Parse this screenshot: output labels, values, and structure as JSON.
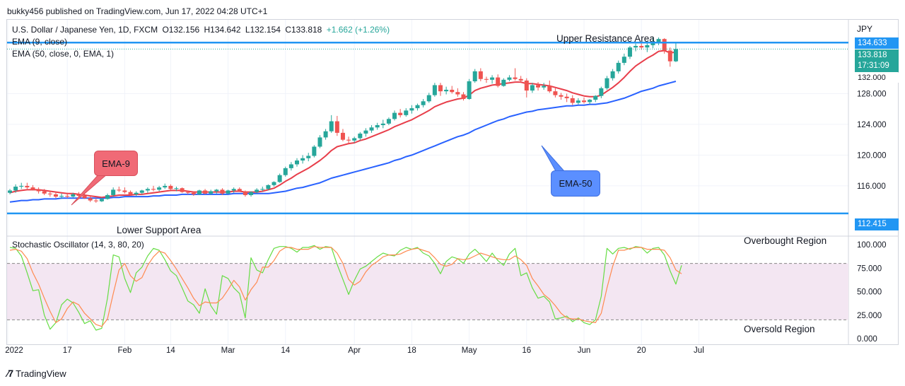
{
  "header": {
    "publisher_line": "bukky456 published on TradingView.com, Jun 17, 2022 04:28 UTC+1"
  },
  "legend": {
    "symbol": "U.S. Dollar / Japanese Yen, 1D, FXCM",
    "open": "O132.156",
    "high": "H134.642",
    "low": "L132.154",
    "close": "C133.818",
    "change": "+1.662 (+1.26%)",
    "ema9": "EMA (9, close)",
    "ema50": "EMA (50, close, 0, EMA, 1)",
    "stoch": "Stochastic Oscillator (14, 3, 80, 20)"
  },
  "annotations": {
    "upper": "Upper Resistance Area",
    "lower": "Lower Support Area",
    "ema9_callout": "EMA-9",
    "ema50_callout": "EMA-50",
    "overbought": "Overbought Region",
    "oversold": "Oversold Region"
  },
  "price_scale": {
    "currency": "JPY",
    "resistance_label": "134.633",
    "price_label": "133.818",
    "countdown": "17:31:09",
    "support_label": "112.415",
    "hidden_tick": "132.000"
  },
  "footer": {
    "brand": "TradingView"
  },
  "colors": {
    "up": "#26a69a",
    "down": "#ef5350",
    "ema9": "#e83e4a",
    "ema50": "#2962ff",
    "level": "#2196f3",
    "stoch_k": "#66dd44",
    "stoch_d": "#ff8a50",
    "band": "#f3e6f2"
  },
  "chart_data": {
    "type": "candlestick",
    "title": "U.S. Dollar / Japanese Yen, 1D, FXCM",
    "ylim": [
      110.2,
      137.6
    ],
    "y_ticks": [
      "116.000",
      "120.000",
      "124.000",
      "128.000"
    ],
    "y_tick_values": [
      116,
      120,
      124,
      128
    ],
    "x_ticks": [
      "2022",
      "17",
      "Feb",
      "14",
      "Mar",
      "14",
      "Apr",
      "18",
      "May",
      "16",
      "Jun",
      "20",
      "Jul"
    ],
    "x_tick_index": [
      0,
      10,
      20,
      28,
      38,
      48,
      60,
      70,
      80,
      90,
      100,
      110,
      120
    ],
    "levels": {
      "resistance": 134.633,
      "support": 112.415
    },
    "candles": [
      [
        115.1,
        115.6,
        114.9,
        115.4
      ],
      [
        115.4,
        116.2,
        115.1,
        115.9
      ],
      [
        115.9,
        116.4,
        115.6,
        116.0
      ],
      [
        116.0,
        116.4,
        115.6,
        115.8
      ],
      [
        115.8,
        116.1,
        115.4,
        115.5
      ],
      [
        115.5,
        115.8,
        115.0,
        115.3
      ],
      [
        115.3,
        115.6,
        114.8,
        115.0
      ],
      [
        115.0,
        115.4,
        114.6,
        114.9
      ],
      [
        114.9,
        115.2,
        114.4,
        114.6
      ],
      [
        114.6,
        115.0,
        114.3,
        114.7
      ],
      [
        114.7,
        115.1,
        114.4,
        114.6
      ],
      [
        114.6,
        115.1,
        114.5,
        114.9
      ],
      [
        114.9,
        115.2,
        114.6,
        114.7
      ],
      [
        114.7,
        115.0,
        114.3,
        114.4
      ],
      [
        114.4,
        114.7,
        113.9,
        114.1
      ],
      [
        114.1,
        114.4,
        113.8,
        114.0
      ],
      [
        114.0,
        114.5,
        113.9,
        114.3
      ],
      [
        114.3,
        115.0,
        114.2,
        114.8
      ],
      [
        114.8,
        115.8,
        114.6,
        115.5
      ],
      [
        115.5,
        115.9,
        115.2,
        115.4
      ],
      [
        115.4,
        115.8,
        115.0,
        115.2
      ],
      [
        115.2,
        115.4,
        114.7,
        114.9
      ],
      [
        114.9,
        115.3,
        114.7,
        115.1
      ],
      [
        115.1,
        115.5,
        114.9,
        115.4
      ],
      [
        115.4,
        115.8,
        115.1,
        115.6
      ],
      [
        115.6,
        116.0,
        115.3,
        115.5
      ],
      [
        115.5,
        116.0,
        115.3,
        115.8
      ],
      [
        115.8,
        116.3,
        115.6,
        116.0
      ],
      [
        116.0,
        116.2,
        115.5,
        115.6
      ],
      [
        115.6,
        115.9,
        115.3,
        115.7
      ],
      [
        115.7,
        115.8,
        115.1,
        115.2
      ],
      [
        115.2,
        115.4,
        114.9,
        115.1
      ],
      [
        115.1,
        115.3,
        114.7,
        114.9
      ],
      [
        114.9,
        115.5,
        114.8,
        115.4
      ],
      [
        115.4,
        115.6,
        114.9,
        115.0
      ],
      [
        115.0,
        115.5,
        114.8,
        115.3
      ],
      [
        115.3,
        115.6,
        115.0,
        115.5
      ],
      [
        115.5,
        115.7,
        114.8,
        115.0
      ],
      [
        115.0,
        115.5,
        114.9,
        115.4
      ],
      [
        115.4,
        115.8,
        115.1,
        115.6
      ],
      [
        115.6,
        115.8,
        115.2,
        115.3
      ],
      [
        115.3,
        115.4,
        114.6,
        114.8
      ],
      [
        114.8,
        115.3,
        114.6,
        115.2
      ],
      [
        115.2,
        115.7,
        115.0,
        115.5
      ],
      [
        115.5,
        115.9,
        115.3,
        115.6
      ],
      [
        115.6,
        116.2,
        115.4,
        116.1
      ],
      [
        116.1,
        116.6,
        115.9,
        116.5
      ],
      [
        116.5,
        117.6,
        116.4,
        117.4
      ],
      [
        117.4,
        118.5,
        117.2,
        118.3
      ],
      [
        118.3,
        119.1,
        118.0,
        118.8
      ],
      [
        118.8,
        119.6,
        118.5,
        119.3
      ],
      [
        119.3,
        120.0,
        118.9,
        119.6
      ],
      [
        119.6,
        120.3,
        119.2,
        119.9
      ],
      [
        119.9,
        121.3,
        119.7,
        121.1
      ],
      [
        121.1,
        122.6,
        120.9,
        122.3
      ],
      [
        122.3,
        123.4,
        122.0,
        123.1
      ],
      [
        123.1,
        125.2,
        122.9,
        124.4
      ],
      [
        124.4,
        125.1,
        122.5,
        122.9
      ],
      [
        122.9,
        123.4,
        121.8,
        122.0
      ],
      [
        122.0,
        122.4,
        121.4,
        121.9
      ],
      [
        121.9,
        122.4,
        121.6,
        122.2
      ],
      [
        122.2,
        123.0,
        121.9,
        122.8
      ],
      [
        122.8,
        123.5,
        122.4,
        123.2
      ],
      [
        123.2,
        123.9,
        122.9,
        123.6
      ],
      [
        123.6,
        124.2,
        123.3,
        123.9
      ],
      [
        123.9,
        124.6,
        123.5,
        124.1
      ],
      [
        124.1,
        124.9,
        123.9,
        124.7
      ],
      [
        124.7,
        125.8,
        124.5,
        125.5
      ],
      [
        125.5,
        126.0,
        124.9,
        125.2
      ],
      [
        125.2,
        126.1,
        125.0,
        125.8
      ],
      [
        125.8,
        126.5,
        125.4,
        126.1
      ],
      [
        126.1,
        126.7,
        125.8,
        126.5
      ],
      [
        126.5,
        127.3,
        126.2,
        127.0
      ],
      [
        127.0,
        128.1,
        126.8,
        127.8
      ],
      [
        127.8,
        129.4,
        127.6,
        129.1
      ],
      [
        129.1,
        129.4,
        127.7,
        128.3
      ],
      [
        128.3,
        128.9,
        127.9,
        128.5
      ],
      [
        128.5,
        129.0,
        128.0,
        128.2
      ],
      [
        128.2,
        128.7,
        127.6,
        127.9
      ],
      [
        127.9,
        128.2,
        127.1,
        127.3
      ],
      [
        127.3,
        129.9,
        127.2,
        129.6
      ],
      [
        129.6,
        131.2,
        129.4,
        130.9
      ],
      [
        130.9,
        131.3,
        129.6,
        129.9
      ],
      [
        129.9,
        130.2,
        129.4,
        129.8
      ],
      [
        129.8,
        130.4,
        129.3,
        130.1
      ],
      [
        130.1,
        130.5,
        128.8,
        129.0
      ],
      [
        129.0,
        130.0,
        128.9,
        129.8
      ],
      [
        129.8,
        130.4,
        129.6,
        130.1
      ],
      [
        130.1,
        131.3,
        129.7,
        129.9
      ],
      [
        129.9,
        130.3,
        129.4,
        129.7
      ],
      [
        129.7,
        130.0,
        127.5,
        128.4
      ],
      [
        128.4,
        129.4,
        128.1,
        129.1
      ],
      [
        129.1,
        129.5,
        128.4,
        128.8
      ],
      [
        128.8,
        129.4,
        128.5,
        129.0
      ],
      [
        129.0,
        129.7,
        128.1,
        128.3
      ],
      [
        128.3,
        128.7,
        127.5,
        127.8
      ],
      [
        127.8,
        128.1,
        127.2,
        127.6
      ],
      [
        127.6,
        128.0,
        126.9,
        127.4
      ],
      [
        127.4,
        127.8,
        126.5,
        126.8
      ],
      [
        126.8,
        127.4,
        126.6,
        127.1
      ],
      [
        127.1,
        127.5,
        126.7,
        126.9
      ],
      [
        126.9,
        127.3,
        126.6,
        127.2
      ],
      [
        127.2,
        127.8,
        126.9,
        127.7
      ],
      [
        127.7,
        128.9,
        127.4,
        128.7
      ],
      [
        128.7,
        130.3,
        128.5,
        130.0
      ],
      [
        130.0,
        131.2,
        129.7,
        130.9
      ],
      [
        130.9,
        132.3,
        130.6,
        132.0
      ],
      [
        132.0,
        133.2,
        131.7,
        132.8
      ],
      [
        132.8,
        134.2,
        132.5,
        134.0
      ],
      [
        134.0,
        134.5,
        133.5,
        134.2
      ],
      [
        134.2,
        134.6,
        133.7,
        134.0
      ],
      [
        134.0,
        134.7,
        133.4,
        134.3
      ],
      [
        134.3,
        135.4,
        133.9,
        134.6
      ],
      [
        134.6,
        135.3,
        134.3,
        135.1
      ],
      [
        135.1,
        135.2,
        133.2,
        133.6
      ],
      [
        133.6,
        134.0,
        131.5,
        132.2
      ],
      [
        132.2,
        134.6,
        132.1,
        133.8
      ]
    ],
    "ema9": [
      115.1,
      115.3,
      115.4,
      115.5,
      115.5,
      115.5,
      115.4,
      115.3,
      115.2,
      115.1,
      115.0,
      115.0,
      114.9,
      114.8,
      114.7,
      114.6,
      114.5,
      114.6,
      114.7,
      114.8,
      114.8,
      114.8,
      114.9,
      114.9,
      115.0,
      115.1,
      115.2,
      115.3,
      115.4,
      115.4,
      115.4,
      115.3,
      115.2,
      115.2,
      115.2,
      115.2,
      115.2,
      115.2,
      115.2,
      115.3,
      115.3,
      115.2,
      115.2,
      115.2,
      115.3,
      115.5,
      115.7,
      116.1,
      116.6,
      117.0,
      117.5,
      117.9,
      118.3,
      118.8,
      119.3,
      119.9,
      120.6,
      121.1,
      121.3,
      121.5,
      121.6,
      121.9,
      122.1,
      122.4,
      122.7,
      123.0,
      123.3,
      123.7,
      124.0,
      124.3,
      124.6,
      125.0,
      125.4,
      125.8,
      126.3,
      126.6,
      126.9,
      127.1,
      127.3,
      127.4,
      127.8,
      128.4,
      128.7,
      128.9,
      129.1,
      129.2,
      129.3,
      129.4,
      129.5,
      129.5,
      129.3,
      129.3,
      129.2,
      129.1,
      129.0,
      128.8,
      128.6,
      128.4,
      128.1,
      127.9,
      127.7,
      127.6,
      127.6,
      127.8,
      128.3,
      128.8,
      129.4,
      130.1,
      130.9,
      131.6,
      132.1,
      132.6,
      133.0,
      133.5,
      133.6,
      133.3,
      133.4
    ],
    "ema50": [
      113.9,
      114.0,
      114.1,
      114.1,
      114.2,
      114.2,
      114.3,
      114.3,
      114.3,
      114.4,
      114.4,
      114.4,
      114.4,
      114.4,
      114.4,
      114.4,
      114.4,
      114.4,
      114.5,
      114.5,
      114.6,
      114.6,
      114.6,
      114.6,
      114.6,
      114.7,
      114.7,
      114.8,
      114.8,
      114.8,
      114.9,
      114.9,
      114.9,
      114.9,
      114.9,
      114.9,
      114.9,
      114.9,
      114.9,
      115.0,
      115.0,
      115.0,
      115.0,
      115.0,
      115.0,
      115.0,
      115.1,
      115.2,
      115.3,
      115.5,
      115.7,
      115.8,
      116.0,
      116.2,
      116.4,
      116.7,
      117.0,
      117.2,
      117.4,
      117.6,
      117.8,
      118.0,
      118.2,
      118.4,
      118.6,
      118.8,
      119.0,
      119.3,
      119.5,
      119.8,
      120.0,
      120.3,
      120.6,
      120.9,
      121.2,
      121.5,
      121.8,
      122.1,
      122.4,
      122.6,
      122.9,
      123.3,
      123.6,
      123.9,
      124.2,
      124.5,
      124.7,
      125.0,
      125.2,
      125.4,
      125.6,
      125.7,
      125.9,
      126.0,
      126.1,
      126.2,
      126.3,
      126.4,
      126.4,
      126.5,
      126.5,
      126.6,
      126.6,
      126.7,
      126.8,
      127.0,
      127.2,
      127.4,
      127.7,
      128.0,
      128.3,
      128.5,
      128.7,
      129.0,
      129.2,
      129.4,
      129.6
    ],
    "stoch_ylim": [
      0,
      100
    ],
    "stoch_ticks": [
      "100.000",
      "75.000",
      "50.000",
      "25.000",
      "0.000"
    ],
    "stoch_levels": [
      80,
      20
    ],
    "stoch_k": [
      97,
      96,
      88,
      70,
      51,
      52,
      25,
      10,
      17,
      36,
      42,
      38,
      28,
      16,
      19,
      9,
      11,
      43,
      89,
      87,
      64,
      49,
      70,
      76,
      88,
      96,
      94,
      84,
      72,
      67,
      54,
      40,
      36,
      27,
      53,
      35,
      26,
      67,
      64,
      54,
      48,
      22,
      86,
      73,
      70,
      84,
      96,
      98,
      98,
      96,
      92,
      97,
      97,
      99,
      95,
      98,
      97,
      79,
      63,
      47,
      62,
      74,
      77,
      82,
      87,
      91,
      89,
      88,
      94,
      97,
      95,
      97,
      91,
      88,
      80,
      69,
      82,
      87,
      85,
      80,
      90,
      95,
      89,
      82,
      91,
      83,
      78,
      90,
      96,
      67,
      70,
      54,
      43,
      45,
      39,
      21,
      22,
      24,
      18,
      22,
      17,
      15,
      20,
      45,
      96,
      90,
      96,
      97,
      95,
      98,
      97,
      91,
      96,
      97,
      89,
      72,
      58,
      78
    ],
    "stoch_d": [
      94,
      95,
      93,
      85,
      70,
      58,
      43,
      29,
      17,
      21,
      32,
      39,
      36,
      27,
      21,
      15,
      13,
      21,
      48,
      73,
      80,
      67,
      61,
      65,
      78,
      87,
      93,
      91,
      83,
      74,
      64,
      54,
      43,
      35,
      39,
      38,
      38,
      43,
      52,
      62,
      55,
      41,
      52,
      60,
      76,
      76,
      83,
      93,
      97,
      97,
      95,
      95,
      95,
      98,
      97,
      97,
      97,
      91,
      80,
      63,
      57,
      61,
      71,
      78,
      82,
      87,
      89,
      89,
      90,
      93,
      95,
      96,
      94,
      92,
      86,
      79,
      77,
      79,
      85,
      84,
      85,
      88,
      91,
      89,
      87,
      85,
      84,
      84,
      88,
      84,
      78,
      64,
      56,
      47,
      42,
      35,
      27,
      22,
      21,
      21,
      19,
      18,
      17,
      27,
      54,
      77,
      94,
      94,
      96,
      97,
      97,
      95,
      95,
      95,
      94,
      86,
      73,
      69
    ]
  }
}
